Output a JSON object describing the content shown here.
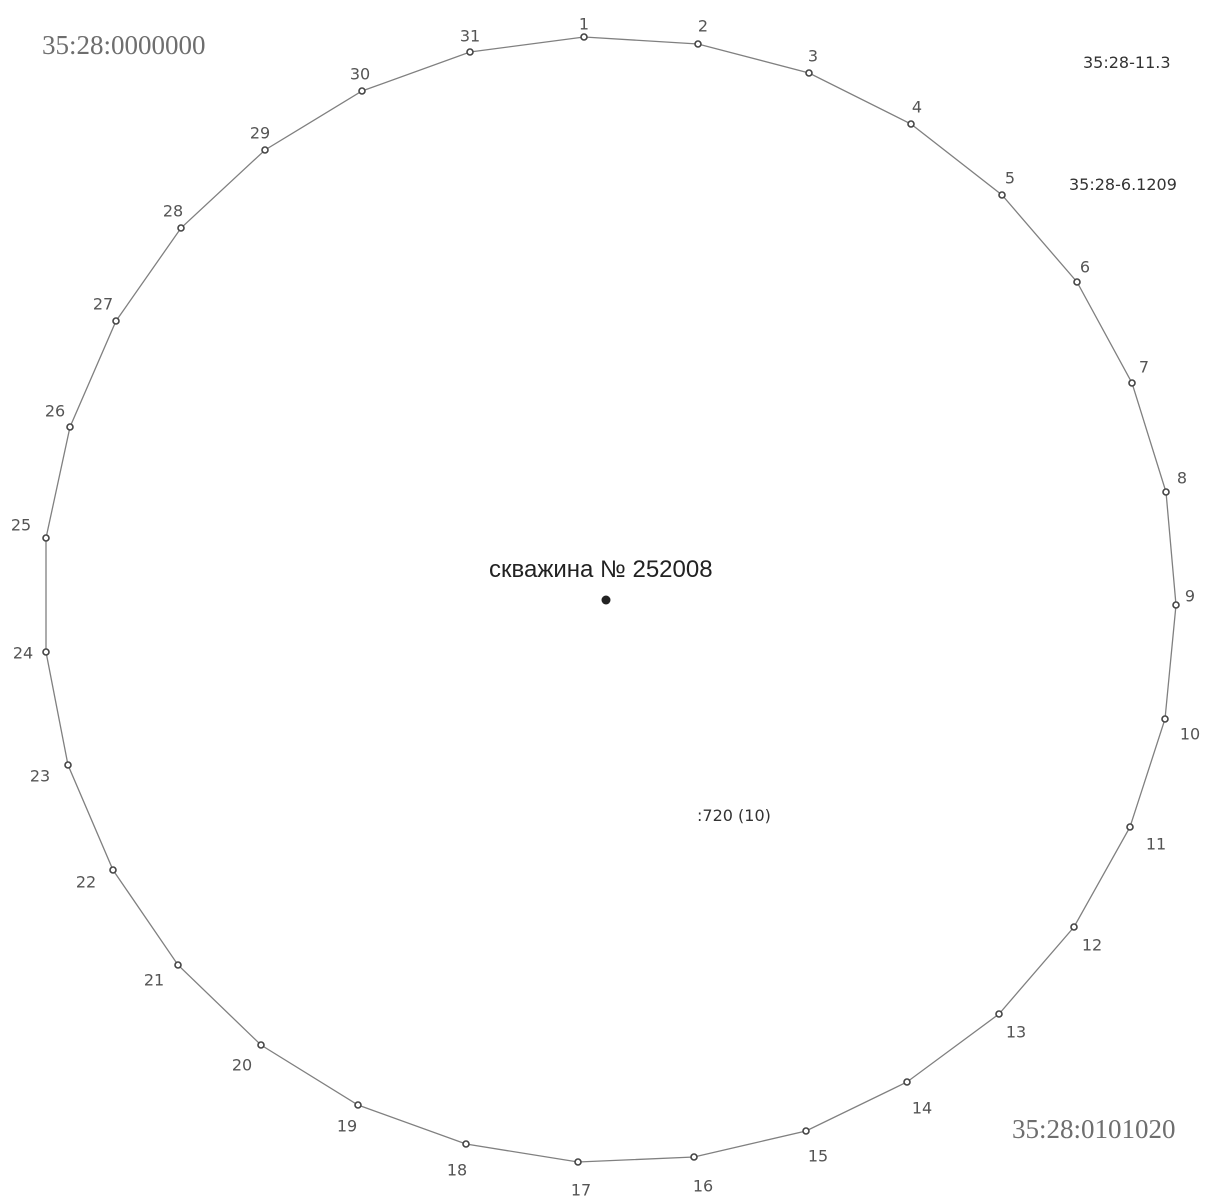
{
  "cadastral": {
    "top_left": "35:28:0000000",
    "bottom_right": "35:28:0101020",
    "top_right_1": "35:28-11.3",
    "top_right_2": "35:28-6.1209"
  },
  "parcel_label": ":720 (10)",
  "well": {
    "label": "скважина № 252008"
  },
  "boundary": {
    "line_color": "#808080",
    "point_color": "#444444",
    "points": [
      {
        "n": "1"
      },
      {
        "n": "2"
      },
      {
        "n": "3"
      },
      {
        "n": "4"
      },
      {
        "n": "5"
      },
      {
        "n": "6"
      },
      {
        "n": "7"
      },
      {
        "n": "8"
      },
      {
        "n": "9"
      },
      {
        "n": "10"
      },
      {
        "n": "11"
      },
      {
        "n": "12"
      },
      {
        "n": "13"
      },
      {
        "n": "14"
      },
      {
        "n": "15"
      },
      {
        "n": "16"
      },
      {
        "n": "17"
      },
      {
        "n": "18"
      },
      {
        "n": "19"
      },
      {
        "n": "20"
      },
      {
        "n": "21"
      },
      {
        "n": "22"
      },
      {
        "n": "23"
      },
      {
        "n": "24"
      },
      {
        "n": "25"
      },
      {
        "n": "26"
      },
      {
        "n": "27"
      },
      {
        "n": "28"
      },
      {
        "n": "29"
      },
      {
        "n": "30"
      },
      {
        "n": "31"
      }
    ]
  }
}
